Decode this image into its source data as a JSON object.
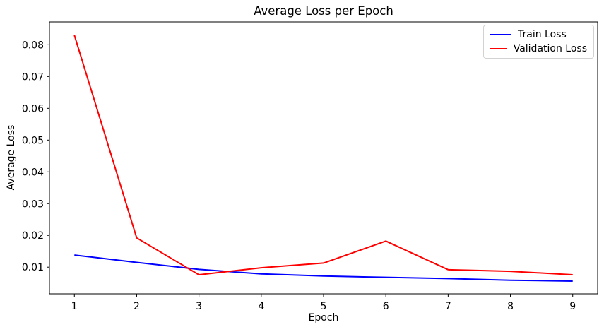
{
  "figure": {
    "background": "#ffffff",
    "text_color": "#000000",
    "spine_color": "#000000",
    "legend_border_color": "#d2d2d2"
  },
  "chart_data": {
    "type": "line",
    "title": "Average Loss per Epoch",
    "xlabel": "Epoch",
    "ylabel": "Average Loss",
    "x": [
      1,
      2,
      3,
      4,
      5,
      6,
      7,
      8,
      9
    ],
    "series": [
      {
        "name": "Train Loss",
        "color": "#0000ff",
        "values": [
          0.0138,
          0.0115,
          0.0093,
          0.0079,
          0.0072,
          0.0068,
          0.0064,
          0.0059,
          0.0056
        ]
      },
      {
        "name": "Validation Loss",
        "color": "#ff0000",
        "values": [
          0.083,
          0.0192,
          0.0076,
          0.0098,
          0.0113,
          0.0182,
          0.0092,
          0.0087,
          0.0076
        ]
      }
    ],
    "xlim": [
      0.6,
      9.4
    ],
    "ylim": [
      0.0016,
      0.0872
    ],
    "x_ticks": [
      1,
      2,
      3,
      4,
      5,
      6,
      7,
      8,
      9
    ],
    "y_ticks": [
      0.01,
      0.02,
      0.03,
      0.04,
      0.05,
      0.06,
      0.07,
      0.08
    ],
    "grid": false,
    "legend_position": "upper right"
  }
}
